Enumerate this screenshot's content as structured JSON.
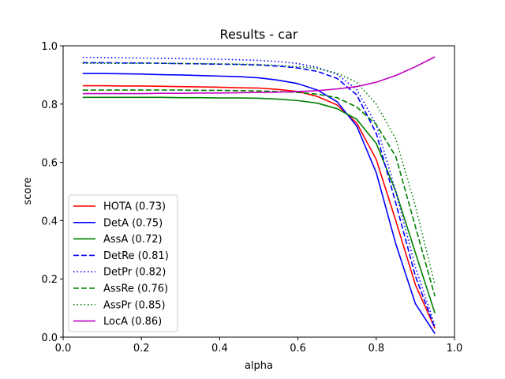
{
  "chart_data": {
    "type": "line",
    "title": "Results - car",
    "xlabel": "alpha",
    "ylabel": "score",
    "xlim": [
      0.0,
      1.0
    ],
    "ylim": [
      0.0,
      1.0
    ],
    "xticks": [
      "0.0",
      "0.2",
      "0.4",
      "0.6",
      "0.8",
      "1.0"
    ],
    "yticks": [
      "0.0",
      "0.2",
      "0.4",
      "0.6",
      "0.8",
      "1.0"
    ],
    "grid": false,
    "legend_position": "lower-left",
    "x": [
      0.05,
      0.1,
      0.15,
      0.2,
      0.25,
      0.3,
      0.35,
      0.4,
      0.45,
      0.5,
      0.55,
      0.6,
      0.65,
      0.7,
      0.75,
      0.8,
      0.85,
      0.9,
      0.95
    ],
    "series": [
      {
        "name": "HOTA (0.73)",
        "color": "#ff0000",
        "dash": "solid",
        "values": [
          0.863,
          0.863,
          0.862,
          0.862,
          0.861,
          0.86,
          0.859,
          0.858,
          0.856,
          0.855,
          0.85,
          0.843,
          0.826,
          0.797,
          0.735,
          0.61,
          0.4,
          0.18,
          0.03
        ]
      },
      {
        "name": "DetA (0.75)",
        "color": "#0000ff",
        "dash": "solid",
        "values": [
          0.905,
          0.905,
          0.904,
          0.903,
          0.901,
          0.9,
          0.898,
          0.896,
          0.894,
          0.89,
          0.882,
          0.87,
          0.848,
          0.808,
          0.725,
          0.565,
          0.32,
          0.115,
          0.012
        ]
      },
      {
        "name": "AssA (0.72)",
        "color": "#008000",
        "dash": "solid",
        "values": [
          0.823,
          0.823,
          0.823,
          0.823,
          0.823,
          0.822,
          0.822,
          0.821,
          0.821,
          0.82,
          0.817,
          0.812,
          0.803,
          0.784,
          0.748,
          0.665,
          0.5,
          0.29,
          0.082
        ]
      },
      {
        "name": "DetRe (0.81)",
        "color": "#0000ff",
        "dash": "dashed",
        "values": [
          0.942,
          0.942,
          0.941,
          0.941,
          0.94,
          0.939,
          0.938,
          0.937,
          0.936,
          0.934,
          0.93,
          0.924,
          0.912,
          0.888,
          0.832,
          0.7,
          0.46,
          0.21,
          0.03
        ]
      },
      {
        "name": "DetPr (0.82)",
        "color": "#0000ff",
        "dash": "dotted",
        "values": [
          0.96,
          0.96,
          0.959,
          0.958,
          0.957,
          0.956,
          0.955,
          0.954,
          0.952,
          0.95,
          0.946,
          0.939,
          0.926,
          0.902,
          0.85,
          0.73,
          0.5,
          0.24,
          0.04
        ]
      },
      {
        "name": "AssRe (0.76)",
        "color": "#008000",
        "dash": "dashed",
        "values": [
          0.848,
          0.848,
          0.848,
          0.848,
          0.848,
          0.848,
          0.847,
          0.847,
          0.846,
          0.845,
          0.843,
          0.84,
          0.834,
          0.822,
          0.79,
          0.73,
          0.62,
          0.38,
          0.14
        ]
      },
      {
        "name": "AssPr (0.85)",
        "color": "#008000",
        "dash": "dotted",
        "values": [
          0.94,
          0.94,
          0.94,
          0.94,
          0.94,
          0.939,
          0.939,
          0.938,
          0.937,
          0.936,
          0.933,
          0.929,
          0.922,
          0.906,
          0.875,
          0.8,
          0.68,
          0.45,
          0.18
        ]
      },
      {
        "name": "LocA (0.86)",
        "color": "#bf00bf",
        "dash": "solid",
        "values": [
          0.836,
          0.836,
          0.836,
          0.836,
          0.837,
          0.837,
          0.838,
          0.838,
          0.839,
          0.84,
          0.841,
          0.843,
          0.846,
          0.852,
          0.86,
          0.875,
          0.898,
          0.928,
          0.962
        ]
      }
    ]
  }
}
